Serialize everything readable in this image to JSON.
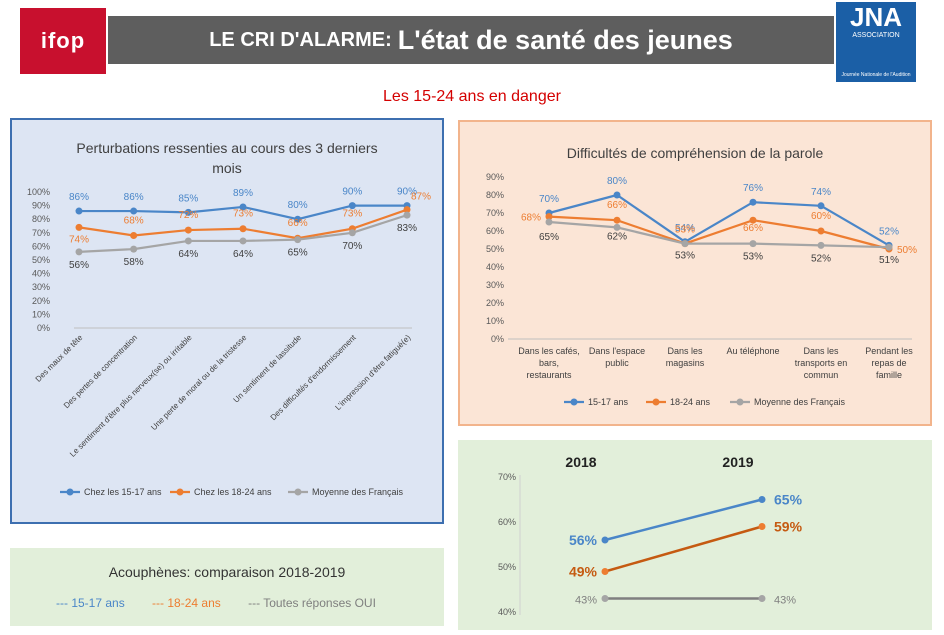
{
  "header": {
    "logo_left": "ifop",
    "logo_right": "JNA",
    "logo_right_sub": "ASSOCIATION",
    "logo_right_footer": "Journée Nationale de l'Audition",
    "title_prefix": "LE CRI D'ALARME:",
    "title_main": "L'état de santé des jeunes"
  },
  "subtitle": "Les 15-24 ans en danger",
  "colors": {
    "blue": "#4a86c8",
    "orange": "#ed7d31",
    "gray": "#a5a5a5",
    "red": "#d40000"
  },
  "chart_data": [
    {
      "id": "perturbations",
      "type": "line",
      "title": "Perturbations ressenties au cours des 3 derniers mois",
      "title_lines": [
        "Perturbations ressenties au cours des 3 derniers",
        "mois"
      ],
      "categories": [
        "Des maux de tête",
        "Des pertes de concentration",
        "Le sentiment d'être plus nerveux(se) ou irritable",
        "Une perte de moral ou de la tristesse",
        "Un sentiment de lassitude",
        "Des difficultés d'endormissement",
        "L'impression d'être fatigué(e)"
      ],
      "series": [
        {
          "name": "Chez les 15-17 ans",
          "values": [
            86,
            86,
            85,
            89,
            80,
            90,
            90
          ],
          "labels": [
            "86%",
            "86%",
            "85%",
            "89%",
            "80%",
            "90%",
            "90%"
          ]
        },
        {
          "name": "Chez les 18-24 ans",
          "values": [
            74,
            68,
            72,
            73,
            66,
            73,
            87
          ],
          "labels": [
            "74%",
            "68%",
            "72%",
            "73%",
            "66%",
            "73%",
            "87%"
          ]
        },
        {
          "name": "Moyenne des Français",
          "values": [
            56,
            58,
            64,
            64,
            65,
            70,
            83
          ],
          "labels": [
            "56%",
            "58%",
            "64%",
            "64%",
            "65%",
            "70%",
            "83%"
          ]
        }
      ],
      "ylim": [
        0,
        100
      ],
      "yticks": [
        "0%",
        "10%",
        "20%",
        "30%",
        "40%",
        "50%",
        "60%",
        "70%",
        "80%",
        "90%",
        "100%"
      ]
    },
    {
      "id": "comprehension",
      "type": "line",
      "title": "Difficultés de compréhension de la parole",
      "categories": [
        "Dans les cafés, bars, restaurants",
        "Dans l'espace public",
        "Dans les magasins",
        "Au téléphone",
        "Dans les transports en commun",
        "Pendant les repas de famille"
      ],
      "category_lines": [
        [
          "Dans les cafés,",
          "bars,",
          "restaurants"
        ],
        [
          "Dans l'espace",
          "public"
        ],
        [
          "Dans les",
          "magasins"
        ],
        [
          "Au téléphone"
        ],
        [
          "Dans les",
          "transports en",
          "commun"
        ],
        [
          "Pendant les",
          "repas de",
          "famille"
        ]
      ],
      "series": [
        {
          "name": "15-17 ans",
          "values": [
            70,
            80,
            54,
            76,
            74,
            52
          ],
          "labels": [
            "70%",
            "80%",
            "54%",
            "76%",
            "74%",
            "52%"
          ]
        },
        {
          "name": "18-24 ans",
          "values": [
            68,
            66,
            53,
            66,
            60,
            50
          ],
          "labels": [
            "68%",
            "66%",
            "53%",
            "66%",
            "60%",
            "50%"
          ]
        },
        {
          "name": "Moyenne des Français",
          "values": [
            65,
            62,
            53,
            53,
            52,
            51
          ],
          "labels": [
            "65%",
            "62%",
            "53%",
            "53%",
            "52%",
            "51%"
          ]
        }
      ],
      "ylim": [
        0,
        90
      ],
      "yticks": [
        "0%",
        "10%",
        "20%",
        "30%",
        "40%",
        "50%",
        "60%",
        "70%",
        "80%",
        "90%"
      ]
    },
    {
      "id": "acouphenes",
      "type": "line",
      "title": "Acouphènes: comparaison 2018-2019",
      "x": [
        "2018",
        "2019"
      ],
      "series": [
        {
          "name": "15-17 ans",
          "values": [
            56,
            65
          ],
          "labels": [
            "56%",
            "65%"
          ]
        },
        {
          "name": "18-24 ans",
          "values": [
            49,
            59
          ],
          "labels": [
            "49%",
            "59%"
          ]
        },
        {
          "name": "Toutes réponses OUI",
          "values": [
            43,
            43
          ],
          "labels": [
            "43%",
            "43%"
          ]
        }
      ],
      "ylim": [
        40,
        70
      ],
      "yticks": [
        "40%",
        "50%",
        "60%",
        "70%"
      ]
    }
  ],
  "acouphenes_panel": {
    "title": "Acouphènes: comparaison 2018-2019",
    "legend": [
      "---  15-17 ans",
      "---  18-24 ans",
      "---  Toutes réponses OUI"
    ]
  }
}
